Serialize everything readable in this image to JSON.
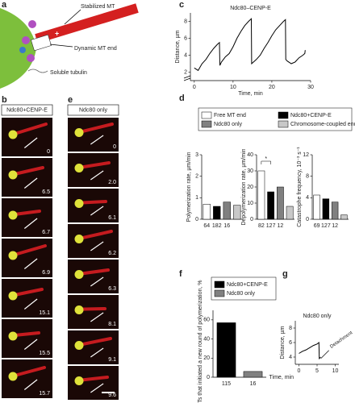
{
  "panel_labels": [
    "a",
    "b",
    "c",
    "d",
    "e",
    "f",
    "g"
  ],
  "diagram": {
    "stabilized": "Stabilized MT",
    "dynamic": "Dynamic MT end",
    "tubulin": "Soluble tubulin",
    "plus": "+"
  },
  "micrographs": {
    "b": {
      "title": "Ndc80+CENP-E",
      "times": [
        "0",
        "6.5",
        "6.7",
        "6.9",
        "15.1",
        "15.5",
        "15.7"
      ]
    },
    "e": {
      "title": "Ndc80 only",
      "times": [
        "0",
        "2.0",
        "6.1",
        "6.2",
        "6.3",
        "8.1",
        "9.1",
        "9.6"
      ]
    }
  },
  "chart_data": [
    {
      "type": "line",
      "title": "Ndc80–CENP-E",
      "ylabel": "Distance, µm",
      "xlabel": "Time, min",
      "color": "#000000",
      "x": [
        0,
        1,
        2,
        3,
        4,
        5,
        6,
        6.5,
        6.6,
        7,
        8,
        9,
        10,
        11,
        12,
        13,
        14,
        14.7,
        14.8,
        16,
        17,
        18,
        19,
        20,
        21,
        22,
        23,
        23.5,
        23.6,
        24,
        25,
        26,
        27,
        28,
        28.5,
        28.6
      ],
      "y": [
        2.5,
        2.2,
        3,
        3.5,
        4.2,
        4.8,
        5.3,
        5.5,
        2.8,
        3.2,
        3.8,
        4.2,
        5,
        6,
        6.8,
        7.5,
        8,
        8.3,
        3,
        3.5,
        4,
        4.8,
        5.5,
        6.3,
        7,
        7.5,
        8,
        8.2,
        3.5,
        3.3,
        3,
        3.2,
        3.7,
        4,
        4.2,
        4.6
      ],
      "xlim": [
        -1,
        30
      ],
      "ylim": [
        1,
        9
      ],
      "xticks": [
        0,
        10,
        20,
        30
      ],
      "yticks": [
        2,
        4,
        6,
        8
      ]
    },
    {
      "type": "bar",
      "ylabel": "Polymerization rate, µm/min",
      "categories": [
        "64",
        "182",
        "16",
        null
      ],
      "values": [
        0.7,
        0.6,
        0.8,
        0.65
      ],
      "colors": [
        "#ffffff",
        "#000000",
        "#808080",
        "#c8c8c8"
      ],
      "ylim": [
        0,
        3
      ],
      "yticks": [
        0,
        1,
        2,
        3
      ],
      "legend": [
        {
          "name": "Free MT end",
          "color": "#ffffff"
        },
        {
          "name": "Ndc80+CENP-E",
          "color": "#000000"
        },
        {
          "name": "Ndc80 only",
          "color": "#808080"
        },
        {
          "name": "Chromosome-coupled end",
          "color": "#c8c8c8"
        }
      ]
    },
    {
      "type": "bar",
      "ylabel": "Depolymerization rate, µm/min",
      "categories": [
        "82",
        "127",
        "12",
        null
      ],
      "values": [
        30,
        17,
        20,
        8
      ],
      "colors": [
        "#ffffff",
        "#000000",
        "#808080",
        "#c8c8c8"
      ],
      "ylim": [
        0,
        40
      ],
      "yticks": [
        0,
        10,
        20,
        30,
        40
      ],
      "annotation": "*"
    },
    {
      "type": "bar",
      "ylabel": "Catastrophe frequency, 10⁻³ s⁻¹",
      "categories": [
        "69",
        "127",
        "12",
        null
      ],
      "values": [
        4.5,
        3.8,
        3.2,
        0.8
      ],
      "colors": [
        "#ffffff",
        "#000000",
        "#808080",
        "#c8c8c8"
      ],
      "ylim": [
        0,
        12
      ],
      "yticks": [
        0,
        4,
        8,
        12
      ]
    },
    {
      "type": "bar",
      "ylabel": "MTs that initiated a new round of polymerization, %",
      "categories": [
        "115",
        "16"
      ],
      "values": [
        57,
        6
      ],
      "colors": [
        "#000000",
        "#808080"
      ],
      "ylim": [
        0,
        70
      ],
      "yticks": [
        0,
        20,
        40,
        60
      ],
      "legend": [
        {
          "name": "Ndc80+CENP-E",
          "color": "#000000"
        },
        {
          "name": "Ndc80 only",
          "color": "#808080"
        }
      ]
    },
    {
      "type": "line",
      "title": "Ndc80 only",
      "ylabel": "Distance, µm",
      "xlabel": "Time, min",
      "color": "#000000",
      "x": [
        0,
        1,
        2,
        3,
        4,
        5,
        5.5,
        5.6,
        6
      ],
      "y": [
        4.5,
        4.8,
        5,
        5.3,
        5.6,
        5.8,
        6,
        3.8,
        4
      ],
      "xlim": [
        -1,
        11
      ],
      "ylim": [
        3,
        9
      ],
      "xticks": [
        0,
        5,
        10
      ],
      "yticks": [
        4,
        6,
        8
      ],
      "annotation": "Detachment"
    }
  ]
}
